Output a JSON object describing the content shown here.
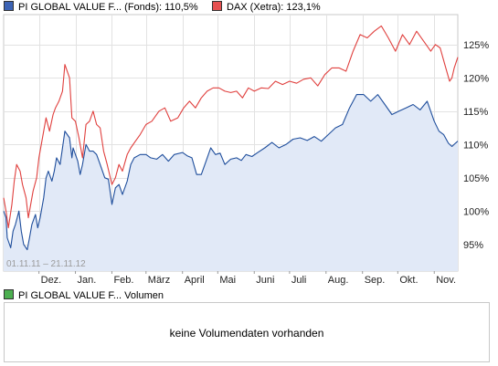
{
  "legend": [
    {
      "name": "PI GLOBAL VALUE F... (Fonds): 110,5%",
      "color": "#3c63b4"
    },
    {
      "name": "DAX (Xetra): 123,1%",
      "color": "#e65050"
    }
  ],
  "volume": {
    "legend_name": "PI GLOBAL VALUE F... Volumen",
    "legend_color": "#4caf50",
    "message": "keine Volumendaten vorhanden"
  },
  "date_range_label": "01.11.11 – 21.11.12",
  "chart_data": {
    "type": "line",
    "title": "",
    "xlabel": "",
    "ylabel": "",
    "x_range": [
      "2011-11-01",
      "2012-11-21"
    ],
    "ylim": [
      91,
      129.5
    ],
    "y_ticks": [
      95,
      100,
      105,
      110,
      115,
      120,
      125
    ],
    "y_tick_labels": [
      "95%",
      "100%",
      "105%",
      "110%",
      "115%",
      "120%",
      "125%"
    ],
    "x_ticks": [
      {
        "date": "2011-12-01",
        "label": "Dez."
      },
      {
        "date": "2012-01-01",
        "label": "Jan."
      },
      {
        "date": "2012-02-01",
        "label": "Feb."
      },
      {
        "date": "2012-03-01",
        "label": "März"
      },
      {
        "date": "2012-04-01",
        "label": "April"
      },
      {
        "date": "2012-05-01",
        "label": "Mai"
      },
      {
        "date": "2012-06-01",
        "label": "Juni"
      },
      {
        "date": "2012-07-01",
        "label": "Juli"
      },
      {
        "date": "2012-08-01",
        "label": "Aug."
      },
      {
        "date": "2012-09-01",
        "label": "Sep."
      },
      {
        "date": "2012-10-01",
        "label": "Okt."
      },
      {
        "date": "2012-11-01",
        "label": "Nov."
      }
    ],
    "grid": true,
    "series": [
      {
        "name": "PI GLOBAL VALUE F... (Fonds)",
        "color": "#1f4e9c",
        "fill": "#e1e9f7",
        "points": [
          [
            "2011-11-01",
            100
          ],
          [
            "2011-11-03",
            99
          ],
          [
            "2011-11-04",
            96
          ],
          [
            "2011-11-07",
            94.5
          ],
          [
            "2011-11-09",
            97
          ],
          [
            "2011-11-11",
            98
          ],
          [
            "2011-11-14",
            100
          ],
          [
            "2011-11-16",
            97
          ],
          [
            "2011-11-18",
            95
          ],
          [
            "2011-11-21",
            94.2
          ],
          [
            "2011-11-23",
            96
          ],
          [
            "2011-11-25",
            98
          ],
          [
            "2011-11-28",
            99.5
          ],
          [
            "2011-11-30",
            97.5
          ],
          [
            "2011-12-02",
            99
          ],
          [
            "2011-12-05",
            102
          ],
          [
            "2011-12-07",
            105
          ],
          [
            "2011-12-09",
            106
          ],
          [
            "2011-12-12",
            104.5
          ],
          [
            "2011-12-14",
            106
          ],
          [
            "2011-12-16",
            108
          ],
          [
            "2011-12-19",
            107
          ],
          [
            "2011-12-21",
            109.5
          ],
          [
            "2011-12-23",
            112
          ],
          [
            "2011-12-27",
            111
          ],
          [
            "2011-12-29",
            108
          ],
          [
            "2011-12-30",
            109.5
          ],
          [
            "2012-01-03",
            107.5
          ],
          [
            "2012-01-05",
            105.5
          ],
          [
            "2012-01-07",
            107
          ],
          [
            "2012-01-10",
            110
          ],
          [
            "2012-01-13",
            109
          ],
          [
            "2012-01-16",
            109
          ],
          [
            "2012-01-19",
            108.5
          ],
          [
            "2012-01-22",
            107
          ],
          [
            "2012-01-26",
            105
          ],
          [
            "2012-01-29",
            104.8
          ],
          [
            "2012-02-01",
            101
          ],
          [
            "2012-02-04",
            103.5
          ],
          [
            "2012-02-07",
            104
          ],
          [
            "2012-02-10",
            102.5
          ],
          [
            "2012-02-14",
            104.5
          ],
          [
            "2012-02-17",
            107
          ],
          [
            "2012-02-20",
            108
          ],
          [
            "2012-02-25",
            108.5
          ],
          [
            "2012-03-01",
            108.5
          ],
          [
            "2012-03-05",
            108
          ],
          [
            "2012-03-10",
            107.8
          ],
          [
            "2012-03-15",
            108.5
          ],
          [
            "2012-03-20",
            107.5
          ],
          [
            "2012-03-25",
            108.5
          ],
          [
            "2012-04-01",
            108.8
          ],
          [
            "2012-04-05",
            108.3
          ],
          [
            "2012-04-09",
            108
          ],
          [
            "2012-04-13",
            105.5
          ],
          [
            "2012-04-17",
            105.5
          ],
          [
            "2012-04-21",
            107.5
          ],
          [
            "2012-04-25",
            109.5
          ],
          [
            "2012-04-29",
            108.5
          ],
          [
            "2012-05-03",
            108.7
          ],
          [
            "2012-05-07",
            107
          ],
          [
            "2012-05-12",
            107.8
          ],
          [
            "2012-05-17",
            108
          ],
          [
            "2012-05-21",
            107.6
          ],
          [
            "2012-05-25",
            108.5
          ],
          [
            "2012-05-30",
            108.2
          ],
          [
            "2012-06-04",
            108.8
          ],
          [
            "2012-06-10",
            109.5
          ],
          [
            "2012-06-16",
            110.3
          ],
          [
            "2012-06-22",
            109.5
          ],
          [
            "2012-06-28",
            110
          ],
          [
            "2012-07-04",
            110.8
          ],
          [
            "2012-07-10",
            111
          ],
          [
            "2012-07-16",
            110.6
          ],
          [
            "2012-07-22",
            111.2
          ],
          [
            "2012-07-28",
            110.5
          ],
          [
            "2012-08-03",
            111.5
          ],
          [
            "2012-08-09",
            112.5
          ],
          [
            "2012-08-15",
            113
          ],
          [
            "2012-08-21",
            115.5
          ],
          [
            "2012-08-27",
            117.5
          ],
          [
            "2012-09-02",
            117.5
          ],
          [
            "2012-09-08",
            116.5
          ],
          [
            "2012-09-14",
            117.5
          ],
          [
            "2012-09-20",
            116
          ],
          [
            "2012-09-26",
            114.5
          ],
          [
            "2012-10-02",
            115
          ],
          [
            "2012-10-08",
            115.5
          ],
          [
            "2012-10-14",
            116
          ],
          [
            "2012-10-20",
            115.2
          ],
          [
            "2012-10-26",
            116.5
          ],
          [
            "2012-11-01",
            113.5
          ],
          [
            "2012-11-05",
            112
          ],
          [
            "2012-11-09",
            111.5
          ],
          [
            "2012-11-13",
            110.2
          ],
          [
            "2012-11-16",
            109.7
          ],
          [
            "2012-11-19",
            110.2
          ],
          [
            "2012-11-21",
            110.5
          ]
        ]
      },
      {
        "name": "DAX (Xetra)",
        "color": "#e0403e",
        "points": [
          [
            "2011-11-01",
            102
          ],
          [
            "2011-11-03",
            100
          ],
          [
            "2011-11-05",
            97.5
          ],
          [
            "2011-11-08",
            101
          ],
          [
            "2011-11-10",
            104.5
          ],
          [
            "2011-11-12",
            107
          ],
          [
            "2011-11-15",
            106
          ],
          [
            "2011-11-17",
            104
          ],
          [
            "2011-11-20",
            102
          ],
          [
            "2011-11-22",
            99
          ],
          [
            "2011-11-24",
            101
          ],
          [
            "2011-11-26",
            103
          ],
          [
            "2011-11-29",
            105
          ],
          [
            "2011-12-01",
            108
          ],
          [
            "2011-12-04",
            111
          ],
          [
            "2011-12-07",
            114
          ],
          [
            "2011-12-10",
            112
          ],
          [
            "2011-12-13",
            114.5
          ],
          [
            "2011-12-15",
            115.5
          ],
          [
            "2011-12-18",
            116.5
          ],
          [
            "2011-12-21",
            118
          ],
          [
            "2011-12-23",
            122
          ],
          [
            "2011-12-27",
            120
          ],
          [
            "2011-12-29",
            114
          ],
          [
            "2012-01-01",
            113.5
          ],
          [
            "2012-01-04",
            111
          ],
          [
            "2012-01-07",
            108
          ],
          [
            "2012-01-10",
            113
          ],
          [
            "2012-01-13",
            113.5
          ],
          [
            "2012-01-16",
            115
          ],
          [
            "2012-01-19",
            113
          ],
          [
            "2012-01-22",
            112.5
          ],
          [
            "2012-01-25",
            109
          ],
          [
            "2012-01-28",
            107
          ],
          [
            "2012-02-01",
            104
          ],
          [
            "2012-02-04",
            105
          ],
          [
            "2012-02-07",
            107
          ],
          [
            "2012-02-10",
            106
          ],
          [
            "2012-02-14",
            108.5
          ],
          [
            "2012-02-17",
            109.5
          ],
          [
            "2012-02-21",
            110.5
          ],
          [
            "2012-02-25",
            111.5
          ],
          [
            "2012-03-01",
            113
          ],
          [
            "2012-03-06",
            113.5
          ],
          [
            "2012-03-12",
            115
          ],
          [
            "2012-03-17",
            115.5
          ],
          [
            "2012-03-22",
            113.5
          ],
          [
            "2012-03-28",
            114
          ],
          [
            "2012-04-02",
            115.5
          ],
          [
            "2012-04-07",
            116.5
          ],
          [
            "2012-04-12",
            115.5
          ],
          [
            "2012-04-17",
            117
          ],
          [
            "2012-04-22",
            118
          ],
          [
            "2012-04-27",
            118.5
          ],
          [
            "2012-05-02",
            118.5
          ],
          [
            "2012-05-07",
            118
          ],
          [
            "2012-05-12",
            117.8
          ],
          [
            "2012-05-17",
            118
          ],
          [
            "2012-05-22",
            117
          ],
          [
            "2012-05-27",
            118.5
          ],
          [
            "2012-06-01",
            118
          ],
          [
            "2012-06-07",
            118.5
          ],
          [
            "2012-06-13",
            118.4
          ],
          [
            "2012-06-19",
            119.5
          ],
          [
            "2012-06-25",
            119
          ],
          [
            "2012-07-01",
            119.5
          ],
          [
            "2012-07-07",
            119.2
          ],
          [
            "2012-07-13",
            119.8
          ],
          [
            "2012-07-19",
            120
          ],
          [
            "2012-07-25",
            118.8
          ],
          [
            "2012-07-31",
            120.5
          ],
          [
            "2012-08-06",
            121.5
          ],
          [
            "2012-08-12",
            121.5
          ],
          [
            "2012-08-18",
            121
          ],
          [
            "2012-08-24",
            124
          ],
          [
            "2012-08-30",
            126.5
          ],
          [
            "2012-09-05",
            126
          ],
          [
            "2012-09-11",
            127
          ],
          [
            "2012-09-17",
            127.8
          ],
          [
            "2012-09-23",
            126
          ],
          [
            "2012-09-29",
            124
          ],
          [
            "2012-10-05",
            126.5
          ],
          [
            "2012-10-11",
            125
          ],
          [
            "2012-10-17",
            127
          ],
          [
            "2012-10-23",
            125.5
          ],
          [
            "2012-10-29",
            124
          ],
          [
            "2012-11-02",
            125
          ],
          [
            "2012-11-06",
            124.5
          ],
          [
            "2012-11-10",
            122
          ],
          [
            "2012-11-14",
            119.5
          ],
          [
            "2012-11-16",
            120
          ],
          [
            "2012-11-18",
            121.5
          ],
          [
            "2012-11-21",
            123.1
          ]
        ]
      }
    ]
  }
}
